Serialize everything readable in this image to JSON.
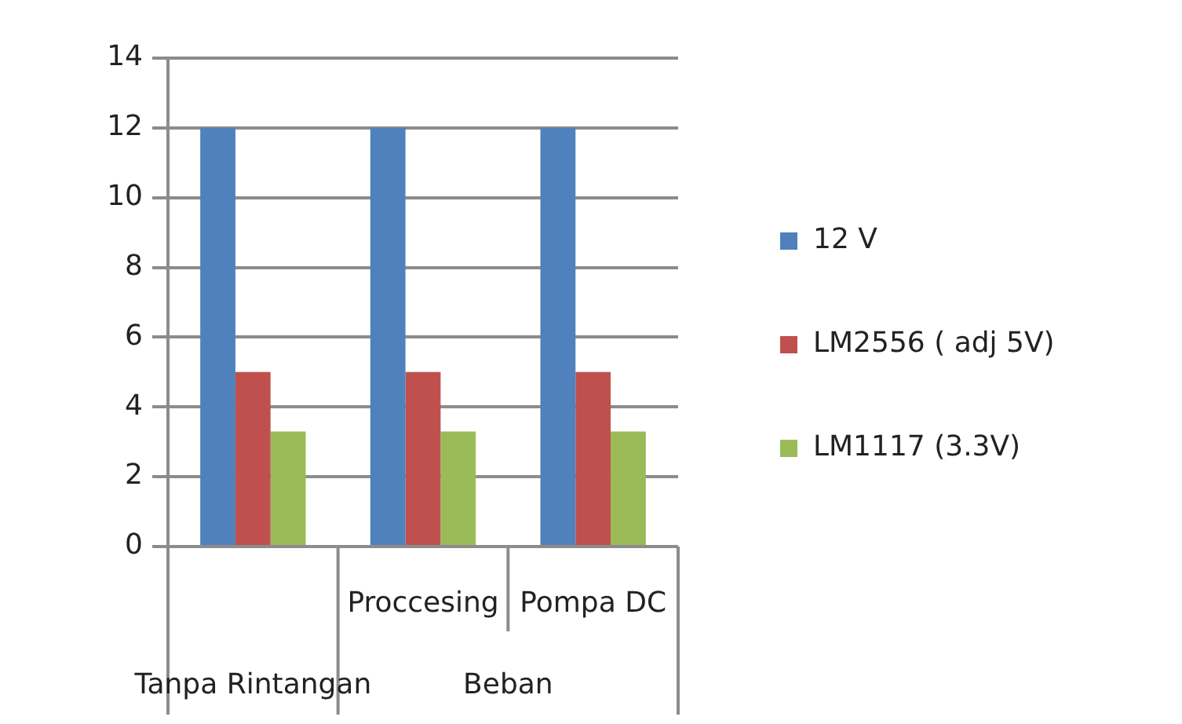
{
  "chart_data": {
    "type": "bar",
    "categories": [
      null,
      "Proccesing",
      "Pompa DC"
    ],
    "series": [
      {
        "name": "12 V",
        "color": "#4f81bd",
        "values": [
          12,
          12,
          12
        ]
      },
      {
        "name": "LM2556 ( adj 5V)",
        "color": "#c0504d",
        "values": [
          5,
          5,
          5
        ]
      },
      {
        "name": "LM1117 (3.3V)",
        "color": "#9bbb59",
        "values": [
          3.3,
          3.3,
          3.3
        ]
      }
    ],
    "annotations": [
      "Tanpa Rintangan",
      "Beban"
    ],
    "ylim": [
      0,
      14
    ],
    "yticks": [
      0,
      2,
      4,
      6,
      8,
      10,
      12,
      14
    ],
    "grid": "y",
    "legend": "right"
  }
}
